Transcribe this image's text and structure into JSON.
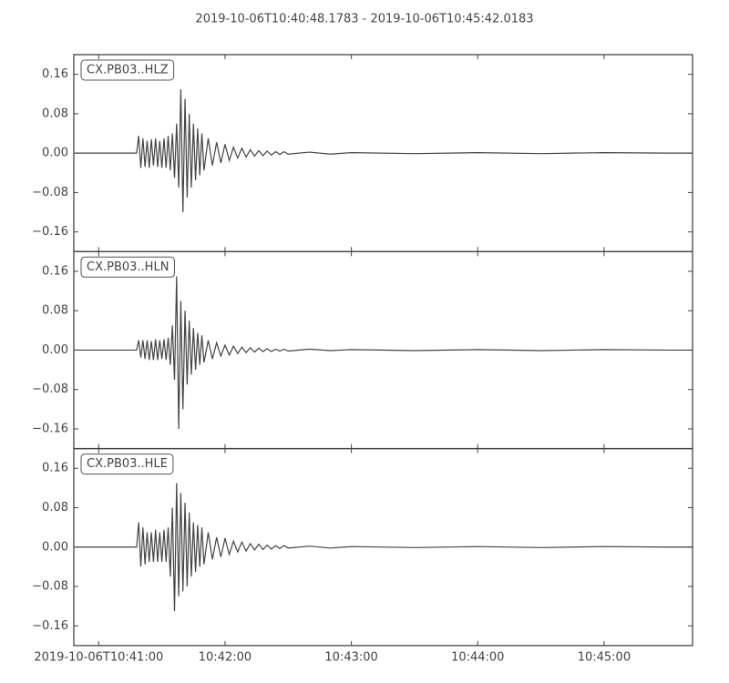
{
  "chart_data": {
    "type": "line",
    "title": "2019-10-06T10:40:48.1783  -  2019-10-06T10:45:42.0183",
    "x": [
      "2019-10-06T10:40:49",
      "2019-10-06T10:41:18",
      "2019-10-06T10:41:19",
      "2019-10-06T10:41:20",
      "2019-10-06T10:41:21",
      "2019-10-06T10:41:22",
      "2019-10-06T10:41:23",
      "2019-10-06T10:41:24",
      "2019-10-06T10:41:25",
      "2019-10-06T10:41:26",
      "2019-10-06T10:41:27",
      "2019-10-06T10:41:28",
      "2019-10-06T10:41:29",
      "2019-10-06T10:41:30",
      "2019-10-06T10:41:31",
      "2019-10-06T10:41:32",
      "2019-10-06T10:41:33",
      "2019-10-06T10:41:34",
      "2019-10-06T10:41:35",
      "2019-10-06T10:41:36",
      "2019-10-06T10:41:37",
      "2019-10-06T10:41:38",
      "2019-10-06T10:41:39",
      "2019-10-06T10:41:40",
      "2019-10-06T10:41:41",
      "2019-10-06T10:41:42",
      "2019-10-06T10:41:43",
      "2019-10-06T10:41:44",
      "2019-10-06T10:41:45",
      "2019-10-06T10:41:46",
      "2019-10-06T10:41:47",
      "2019-10-06T10:41:48",
      "2019-10-06T10:41:49",
      "2019-10-06T10:41:50",
      "2019-10-06T10:41:52",
      "2019-10-06T10:41:54",
      "2019-10-06T10:41:56",
      "2019-10-06T10:41:58",
      "2019-10-06T10:42:00",
      "2019-10-06T10:42:02",
      "2019-10-06T10:42:04",
      "2019-10-06T10:42:06",
      "2019-10-06T10:42:08",
      "2019-10-06T10:42:10",
      "2019-10-06T10:42:12",
      "2019-10-06T10:42:14",
      "2019-10-06T10:42:16",
      "2019-10-06T10:42:18",
      "2019-10-06T10:42:20",
      "2019-10-06T10:42:22",
      "2019-10-06T10:42:24",
      "2019-10-06T10:42:26",
      "2019-10-06T10:42:28",
      "2019-10-06T10:42:30",
      "2019-10-06T10:42:40",
      "2019-10-06T10:42:50",
      "2019-10-06T10:43:00",
      "2019-10-06T10:43:30",
      "2019-10-06T10:44:00",
      "2019-10-06T10:44:30",
      "2019-10-06T10:45:00",
      "2019-10-06T10:45:30",
      "2019-10-06T10:45:42"
    ],
    "series": [
      {
        "name": "CX.PB03..HLZ",
        "color": "#444444",
        "values": [
          0,
          0,
          0.035,
          -0.03,
          0.03,
          -0.028,
          0.025,
          -0.03,
          0.028,
          -0.025,
          0.03,
          -0.028,
          0.025,
          -0.03,
          0.03,
          -0.03,
          0.035,
          -0.035,
          0.04,
          -0.05,
          0.06,
          -0.07,
          0.13,
          -0.12,
          0.11,
          -0.09,
          0.08,
          -0.07,
          0.06,
          -0.055,
          0.05,
          -0.045,
          0.04,
          -0.035,
          0.03,
          -0.025,
          0.022,
          -0.02,
          0.018,
          -0.015,
          0.012,
          -0.01,
          0.01,
          -0.008,
          0.007,
          -0.006,
          0.005,
          -0.005,
          0.004,
          -0.004,
          0.003,
          -0.003,
          0.003,
          -0.002,
          0.002,
          -0.002,
          0.001,
          -0.001,
          0.001,
          -0.001,
          0.001,
          0,
          0
        ]
      },
      {
        "name": "CX.PB03..HLN",
        "color": "#444444",
        "values": [
          0,
          0,
          0.02,
          -0.015,
          0.02,
          -0.018,
          0.02,
          -0.02,
          0.018,
          -0.02,
          0.022,
          -0.02,
          0.02,
          -0.018,
          0.022,
          -0.02,
          0.025,
          -0.03,
          0.05,
          -0.06,
          0.15,
          -0.16,
          0.1,
          -0.12,
          0.08,
          -0.07,
          0.06,
          -0.05,
          0.045,
          -0.04,
          0.035,
          -0.03,
          0.03,
          -0.025,
          0.02,
          -0.018,
          0.015,
          -0.012,
          0.01,
          -0.01,
          0.008,
          -0.007,
          0.006,
          -0.005,
          0.005,
          -0.004,
          0.004,
          -0.003,
          0.003,
          -0.003,
          0.002,
          -0.002,
          0.002,
          -0.002,
          0.002,
          -0.001,
          0.001,
          -0.001,
          0.001,
          -0.001,
          0.001,
          0,
          0
        ]
      },
      {
        "name": "CX.PB03..HLE",
        "color": "#444444",
        "values": [
          0,
          0,
          0.05,
          -0.04,
          0.04,
          -0.035,
          0.03,
          -0.03,
          0.03,
          -0.03,
          0.035,
          -0.03,
          0.03,
          -0.03,
          0.035,
          -0.03,
          0.04,
          -0.06,
          0.08,
          -0.13,
          0.13,
          -0.1,
          0.11,
          -0.09,
          0.09,
          -0.08,
          0.07,
          -0.06,
          0.05,
          -0.05,
          0.045,
          -0.04,
          0.04,
          -0.035,
          0.03,
          -0.025,
          0.02,
          -0.02,
          0.018,
          -0.015,
          0.012,
          -0.01,
          0.01,
          -0.008,
          0.007,
          -0.006,
          0.006,
          -0.005,
          0.004,
          -0.004,
          0.003,
          -0.003,
          0.003,
          -0.002,
          0.002,
          -0.002,
          0.001,
          -0.001,
          0.001,
          -0.001,
          0.001,
          0,
          0
        ]
      }
    ],
    "xlim": [
      "2019-10-06T10:40:48.1783",
      "2019-10-06T10:45:42.0183"
    ],
    "xticks": [
      "2019-10-06T10:41:00",
      {
        "value": "2019-10-06T10:42:00",
        "label": "10:42:00"
      },
      {
        "value": "2019-10-06T10:43:00",
        "label": "10:43:00"
      },
      {
        "value": "2019-10-06T10:44:00",
        "label": "10:44:00"
      },
      {
        "value": "2019-10-06T10:45:00",
        "label": "10:45:00"
      }
    ],
    "ylim": [
      -0.2,
      0.2
    ],
    "yticks": [
      {
        "value": -0.16,
        "label": "−0.16"
      },
      {
        "value": -0.08,
        "label": "−0.08"
      },
      {
        "value": 0,
        "label": "0.00"
      },
      0.08,
      0.16
    ]
  }
}
